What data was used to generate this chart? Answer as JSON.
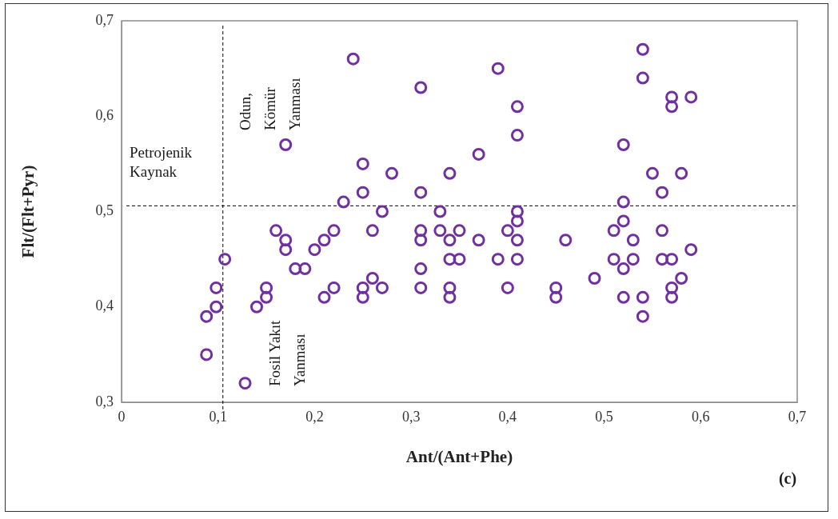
{
  "chart_data": {
    "type": "scatter",
    "xlabel": "Ant/(Ant+Phe)",
    "ylabel": "Flt/(Flt+Pyr)",
    "annotations": [
      "Petrojenik\nKaynak",
      "Odun,\nKömür\nYanması",
      "Fosil Yakıt\nYanması",
      "(c)"
    ],
    "xlim": [
      0,
      0.7
    ],
    "ylim": [
      0.3,
      0.7
    ],
    "xticks": [
      {
        "value": 0,
        "label": "0"
      },
      {
        "value": 0.1,
        "label": "0,1"
      },
      {
        "value": 0.2,
        "label": "0,2"
      },
      {
        "value": 0.3,
        "label": "0,3"
      },
      {
        "value": 0.4,
        "label": "0,4"
      },
      {
        "value": 0.5,
        "label": "0,5"
      },
      {
        "value": 0.6,
        "label": "0,6"
      },
      {
        "value": 0.7,
        "label": "0,7"
      }
    ],
    "yticks": [
      {
        "value": 0.3,
        "label": "0,3"
      },
      {
        "value": 0.4,
        "label": "0,4"
      },
      {
        "value": 0.5,
        "label": "0,5"
      },
      {
        "value": 0.6,
        "label": "0,6"
      },
      {
        "value": 0.7,
        "label": "0,7"
      }
    ],
    "grid": false,
    "legend": false,
    "marker": "circle",
    "ref_lines": [
      {
        "axis": "x",
        "value": 0.105,
        "color": "#000000",
        "line_style": "dashed"
      },
      {
        "axis": "y",
        "value": 0.506,
        "color": "#000000",
        "line_style": "dashed"
      }
    ],
    "series": [
      {
        "color": "#7030a0",
        "x": [
          0.088,
          0.088,
          0.098,
          0.098,
          0.107,
          0.128,
          0.14,
          0.15,
          0.15,
          0.16,
          0.17,
          0.17,
          0.17,
          0.18,
          0.19,
          0.2,
          0.21,
          0.21,
          0.22,
          0.22,
          0.23,
          0.24,
          0.25,
          0.25,
          0.25,
          0.25,
          0.26,
          0.26,
          0.27,
          0.27,
          0.28,
          0.31,
          0.31,
          0.31,
          0.31,
          0.31,
          0.31,
          0.33,
          0.33,
          0.34,
          0.34,
          0.34,
          0.34,
          0.34,
          0.35,
          0.35,
          0.37,
          0.37,
          0.39,
          0.39,
          0.4,
          0.4,
          0.41,
          0.41,
          0.41,
          0.41,
          0.41,
          0.41,
          0.45,
          0.45,
          0.46,
          0.49,
          0.51,
          0.51,
          0.52,
          0.52,
          0.52,
          0.52,
          0.52,
          0.53,
          0.53,
          0.54,
          0.54,
          0.54,
          0.54,
          0.55,
          0.56,
          0.56,
          0.56,
          0.57,
          0.57,
          0.57,
          0.57,
          0.57,
          0.58,
          0.58,
          0.59,
          0.59
        ],
        "values": [
          0.39,
          0.35,
          0.42,
          0.4,
          0.45,
          0.32,
          0.4,
          0.42,
          0.41,
          0.48,
          0.47,
          0.46,
          0.57,
          0.44,
          0.44,
          0.46,
          0.47,
          0.41,
          0.48,
          0.42,
          0.51,
          0.66,
          0.55,
          0.52,
          0.42,
          0.41,
          0.48,
          0.43,
          0.5,
          0.42,
          0.54,
          0.63,
          0.52,
          0.48,
          0.47,
          0.44,
          0.42,
          0.5,
          0.48,
          0.54,
          0.47,
          0.45,
          0.42,
          0.41,
          0.48,
          0.45,
          0.56,
          0.47,
          0.65,
          0.45,
          0.48,
          0.42,
          0.61,
          0.58,
          0.5,
          0.49,
          0.47,
          0.45,
          0.42,
          0.41,
          0.47,
          0.43,
          0.48,
          0.45,
          0.57,
          0.51,
          0.49,
          0.44,
          0.41,
          0.47,
          0.45,
          0.67,
          0.64,
          0.41,
          0.39,
          0.54,
          0.52,
          0.48,
          0.45,
          0.62,
          0.61,
          0.45,
          0.42,
          0.41,
          0.54,
          0.43,
          0.62,
          0.46
        ]
      }
    ]
  }
}
